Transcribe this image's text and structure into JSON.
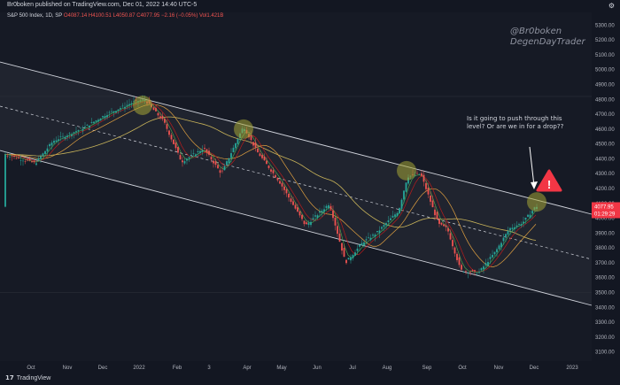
{
  "header": {
    "published": "Br0boken published on TradingView.com, Dec 01, 2022 14:40 UTC-5",
    "gear_icon": "gear-icon"
  },
  "symbol": {
    "name": "S&P 500 Index, 1D, SP",
    "open": "O4087.14",
    "high": "H4100.51",
    "low": "L4050.87",
    "close": "C4077.95",
    "change": "−2.16 (−0.05%)",
    "vol": "Vol1.421B"
  },
  "watermark": {
    "line1": "@Br0boken",
    "line2": "DegenDayTrader"
  },
  "annotation": {
    "text": "Is it going to push through this level? Or are we in for a drop??"
  },
  "price_labels": {
    "last": "4077.95",
    "countdown": "01:29:29"
  },
  "y_ticks": [
    "5300.00",
    "5200.00",
    "5100.00",
    "5000.00",
    "4900.00",
    "4800.00",
    "4700.00",
    "4600.00",
    "4500.00",
    "4400.00",
    "4300.00",
    "4200.00",
    "4100.00",
    "4000.00",
    "3900.00",
    "3800.00",
    "3700.00",
    "3600.00",
    "3500.00",
    "3400.00",
    "3300.00",
    "3200.00",
    "3100.00"
  ],
  "x_ticks": [
    "Oct",
    "Nov",
    "Dec",
    "2022",
    "Feb",
    "3",
    "Apr",
    "May",
    "Jun",
    "Jul",
    "Aug",
    "Sep",
    "Oct",
    "Nov",
    "Dec",
    "2023"
  ],
  "footer": {
    "brand": "TradingView"
  },
  "colors": {
    "bg": "#161a25",
    "up": "#26a69a",
    "down": "#ef5350",
    "channel": "#d1d4dc",
    "highlight": "#a5a637",
    "warning": "#f23645"
  },
  "chart_data": {
    "type": "candlestick",
    "title": "S&P 500 Index, 1D, SP",
    "ylim": [
      3050,
      5350
    ],
    "channel": "descending parallel channel with dashed midline",
    "annotation": "Is it going to push through this level? Or are we in for a drop??",
    "last_price": 4077.95,
    "marked_highs": [
      4800,
      4640,
      4320,
      4100
    ]
  }
}
